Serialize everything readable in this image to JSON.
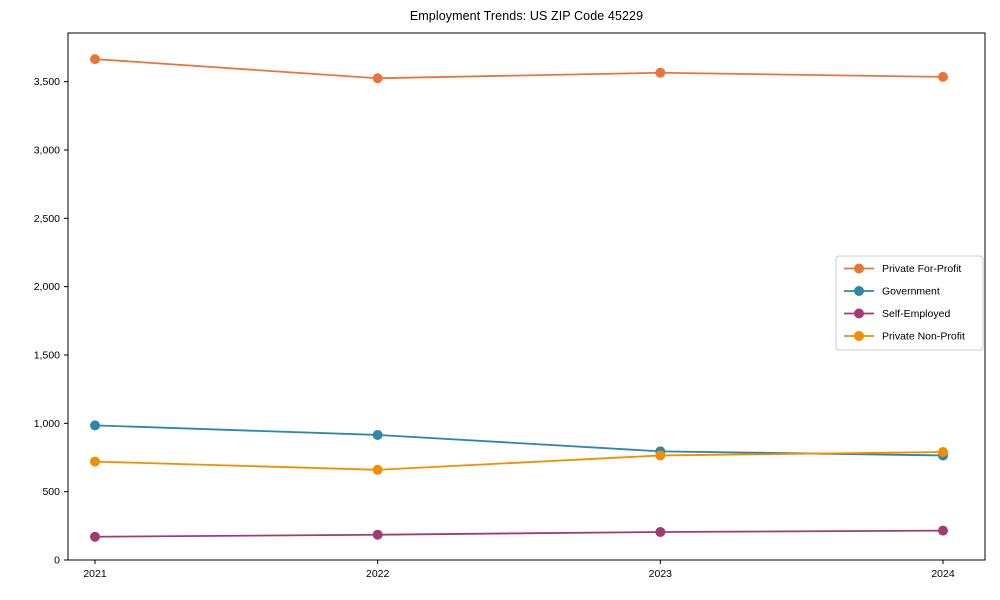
{
  "page": {
    "title": "Employment Trends: US ZIP Code 45229"
  },
  "chart_data": {
    "type": "line",
    "title": "Employment Trends: US ZIP Code 45229",
    "x": [
      "2021",
      "2022",
      "2023",
      "2024"
    ],
    "xlabel": "",
    "ylabel": "",
    "ylim": [
      0,
      3856
    ],
    "yticks": [
      0,
      500,
      1000,
      1500,
      2000,
      2500,
      3000,
      3500
    ],
    "grid": false,
    "legend": {
      "position": "center-right",
      "entries": [
        "Private For-Profit",
        "Government",
        "Self-Employed",
        "Private Non-Profit"
      ]
    },
    "series": [
      {
        "name": "Private For-Profit",
        "color": "#E8763C",
        "values": [
          3665,
          3525,
          3565,
          3535
        ]
      },
      {
        "name": "Government",
        "color": "#2E86AB",
        "values": [
          985,
          915,
          795,
          765
        ]
      },
      {
        "name": "Self-Employed",
        "color": "#A23B72",
        "values": [
          170,
          185,
          205,
          215
        ]
      },
      {
        "name": "Private Non-Profit",
        "color": "#F18F01",
        "values": [
          720,
          660,
          765,
          790
        ]
      }
    ],
    "axis_color": "#000000",
    "tick_label_color": "#000000",
    "legend_border_color": "#cccccc",
    "legend_background": "#ffffff"
  }
}
